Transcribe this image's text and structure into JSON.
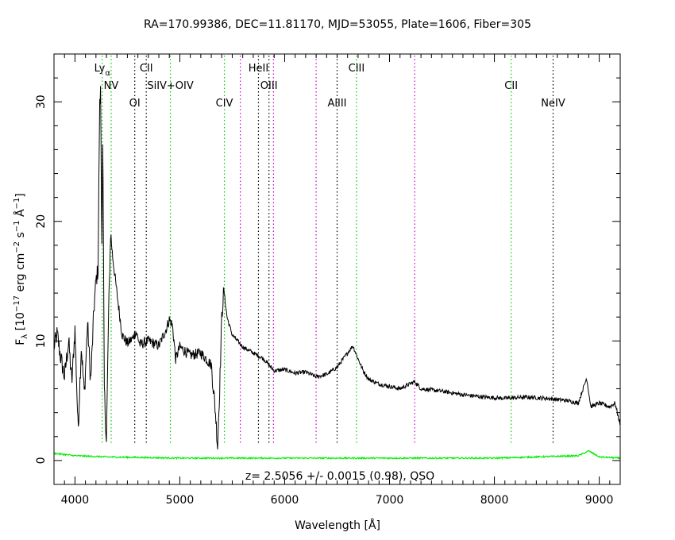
{
  "chart_data": {
    "type": "line",
    "title": "RA=170.99386, DEC=11.81170, MJD=53055, Plate=1606, Fiber=305",
    "xlabel": "Wavelength [Å]",
    "ylabel_parts": {
      "prefix": "F",
      "sub": "λ",
      "mid1": " [10",
      "exp1": "−17",
      "mid2": " erg cm",
      "exp2": "−2",
      "mid3": " s",
      "exp3": "−1",
      "mid4": " Å",
      "exp4": "−1",
      "suffix": "]"
    },
    "xlim": [
      3800,
      9200
    ],
    "ylim": [
      -2,
      34
    ],
    "x_ticks": [
      4000,
      5000,
      6000,
      7000,
      8000,
      9000
    ],
    "y_ticks": [
      0,
      10,
      20,
      30
    ],
    "annotation": "z= 2.5056 +/- 0.0015 (0.98), QSO",
    "colors": {
      "spectrum": "#000000",
      "error": "#00ee00",
      "emission_line": "#00cc00",
      "absorption_line": "#000000",
      "sky_line": "#cc00cc"
    },
    "lines": [
      {
        "label": "Ly",
        "sub": "α",
        "x": 4260,
        "kind": "emission",
        "row": 0
      },
      {
        "label": "NV",
        "x": 4345,
        "kind": "emission",
        "row": 1
      },
      {
        "label": "OI",
        "x": 4570,
        "kind": "absorption",
        "row": 2
      },
      {
        "label": "CII",
        "x": 4680,
        "kind": "absorption",
        "row": 0
      },
      {
        "label": "SiIV+OIV",
        "x": 4910,
        "kind": "emission",
        "row": 1
      },
      {
        "label": "CIV",
        "x": 5425,
        "kind": "emission",
        "row": 3
      },
      {
        "label": "HeII",
        "x": 5750,
        "kind": "absorption",
        "row": 0
      },
      {
        "label": "OIII",
        "x": 5850,
        "kind": "absorption",
        "row": 1
      },
      {
        "label": "AlIII",
        "x": 6500,
        "kind": "absorption",
        "row": 3
      },
      {
        "label": "CIII",
        "x": 6685,
        "kind": "emission",
        "row": 0
      },
      {
        "label": "CII",
        "x": 8160,
        "kind": "emission",
        "row": 1
      },
      {
        "label": "NeIV",
        "x": 8560,
        "kind": "absorption",
        "row": 3
      }
    ],
    "sky_lines": [
      5577,
      5893,
      6300,
      7240
    ],
    "spectrum_anchors": [
      [
        3800,
        9.5
      ],
      [
        3830,
        10.6
      ],
      [
        3860,
        8.8
      ],
      [
        3900,
        7.0
      ],
      [
        3940,
        10.0
      ],
      [
        3970,
        6.5
      ],
      [
        4000,
        11.0
      ],
      [
        4030,
        2.5
      ],
      [
        4060,
        9.5
      ],
      [
        4090,
        5.5
      ],
      [
        4120,
        11.5
      ],
      [
        4150,
        6.5
      ],
      [
        4180,
        12.5
      ],
      [
        4200,
        15.0
      ],
      [
        4220,
        16.0
      ],
      [
        4235,
        29.5
      ],
      [
        4245,
        31.0
      ],
      [
        4255,
        18.0
      ],
      [
        4265,
        27.0
      ],
      [
        4280,
        6.0
      ],
      [
        4300,
        1.5
      ],
      [
        4320,
        12.0
      ],
      [
        4340,
        19.0
      ],
      [
        4360,
        17.0
      ],
      [
        4400,
        14.0
      ],
      [
        4450,
        10.5
      ],
      [
        4500,
        9.8
      ],
      [
        4550,
        10.2
      ],
      [
        4580,
        10.8
      ],
      [
        4620,
        9.7
      ],
      [
        4700,
        10.0
      ],
      [
        4800,
        9.6
      ],
      [
        4870,
        11.0
      ],
      [
        4900,
        11.8
      ],
      [
        4930,
        11.3
      ],
      [
        4960,
        8.5
      ],
      [
        5000,
        9.5
      ],
      [
        5100,
        8.8
      ],
      [
        5200,
        9.0
      ],
      [
        5300,
        8.0
      ],
      [
        5340,
        4.0
      ],
      [
        5360,
        1.2
      ],
      [
        5380,
        6.0
      ],
      [
        5400,
        12.0
      ],
      [
        5420,
        14.3
      ],
      [
        5450,
        12.0
      ],
      [
        5500,
        10.5
      ],
      [
        5600,
        9.5
      ],
      [
        5700,
        9.0
      ],
      [
        5800,
        8.5
      ],
      [
        5900,
        7.5
      ],
      [
        6000,
        7.6
      ],
      [
        6100,
        7.3
      ],
      [
        6200,
        7.4
      ],
      [
        6300,
        7.0
      ],
      [
        6400,
        7.2
      ],
      [
        6500,
        7.8
      ],
      [
        6600,
        9.0
      ],
      [
        6650,
        9.6
      ],
      [
        6700,
        8.5
      ],
      [
        6750,
        7.5
      ],
      [
        6800,
        6.8
      ],
      [
        6900,
        6.4
      ],
      [
        7000,
        6.2
      ],
      [
        7100,
        6.0
      ],
      [
        7240,
        6.6
      ],
      [
        7300,
        6.0
      ],
      [
        7500,
        5.8
      ],
      [
        7700,
        5.5
      ],
      [
        7900,
        5.3
      ],
      [
        8100,
        5.2
      ],
      [
        8300,
        5.3
      ],
      [
        8500,
        5.2
      ],
      [
        8700,
        5.0
      ],
      [
        8800,
        4.8
      ],
      [
        8880,
        6.9
      ],
      [
        8920,
        4.5
      ],
      [
        9000,
        4.8
      ],
      [
        9100,
        4.5
      ],
      [
        9150,
        4.8
      ],
      [
        9200,
        3.0
      ]
    ],
    "error_anchors": [
      [
        3800,
        0.6
      ],
      [
        4000,
        0.4
      ],
      [
        4300,
        0.3
      ],
      [
        5000,
        0.2
      ],
      [
        6000,
        0.2
      ],
      [
        7000,
        0.2
      ],
      [
        8000,
        0.2
      ],
      [
        8800,
        0.4
      ],
      [
        8900,
        0.8
      ],
      [
        9000,
        0.3
      ],
      [
        9200,
        0.2
      ]
    ]
  }
}
